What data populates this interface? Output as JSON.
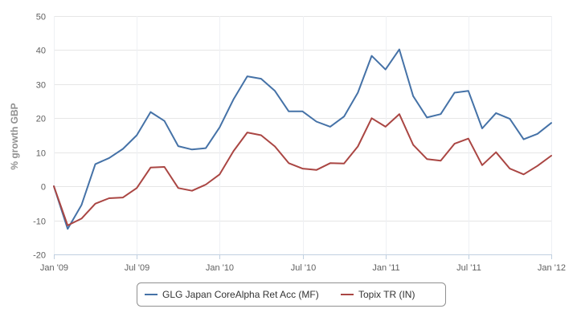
{
  "chart_data": {
    "type": "line",
    "ylabel": "% growth GBP",
    "xlabel": "",
    "ylim": [
      -20,
      50
    ],
    "yticks": [
      -20,
      -10,
      0,
      10,
      20,
      30,
      40,
      50
    ],
    "xticks": [
      {
        "label": "Jan '09",
        "month": 0
      },
      {
        "label": "Jul '09",
        "month": 6
      },
      {
        "label": "Jan '10",
        "month": 12
      },
      {
        "label": "Jul '10",
        "month": 18
      },
      {
        "label": "Jan '11",
        "month": 24
      },
      {
        "label": "Jul '11",
        "month": 30
      },
      {
        "label": "Jan '12",
        "month": 36
      }
    ],
    "x": [
      "2009-01",
      "2009-02",
      "2009-03",
      "2009-04",
      "2009-05",
      "2009-06",
      "2009-07",
      "2009-08",
      "2009-09",
      "2009-10",
      "2009-11",
      "2009-12",
      "2010-01",
      "2010-02",
      "2010-03",
      "2010-04",
      "2010-05",
      "2010-06",
      "2010-07",
      "2010-08",
      "2010-09",
      "2010-10",
      "2010-11",
      "2010-12",
      "2011-01",
      "2011-02",
      "2011-03",
      "2011-04",
      "2011-05",
      "2011-06",
      "2011-07",
      "2011-08",
      "2011-09",
      "2011-10",
      "2011-11",
      "2011-12",
      "2012-01"
    ],
    "grid": true,
    "legend_position": "bottom-center",
    "series": [
      {
        "name": "GLG Japan CoreAlpha Ret Acc (MF)",
        "color": "#4572A7",
        "values": [
          0,
          -12.5,
          -5.5,
          6.5,
          8.3,
          11,
          15,
          21.8,
          19.2,
          11.8,
          10.8,
          11.2,
          17.3,
          25.5,
          32.3,
          31.6,
          28,
          22,
          22,
          19,
          17.5,
          20.5,
          27.5,
          38.3,
          34.3,
          40.2,
          26.5,
          20.2,
          21.2,
          27.5,
          28,
          17,
          21.5,
          19.8,
          13.8,
          15.4,
          18.6
        ]
      },
      {
        "name": "Topix TR (IN)",
        "color": "#AA4643",
        "values": [
          0,
          -11.5,
          -9.5,
          -5.1,
          -3.5,
          -3.3,
          -0.5,
          5.5,
          5.7,
          -0.5,
          -1.3,
          0.5,
          3.5,
          10.3,
          15.8,
          15,
          11.7,
          6.8,
          5.2,
          4.8,
          6.8,
          6.7,
          11.7,
          20,
          17.5,
          21.2,
          12.2,
          8,
          7.5,
          12.5,
          14,
          6.2,
          10,
          5.2,
          3.5,
          6,
          9
        ]
      }
    ]
  }
}
